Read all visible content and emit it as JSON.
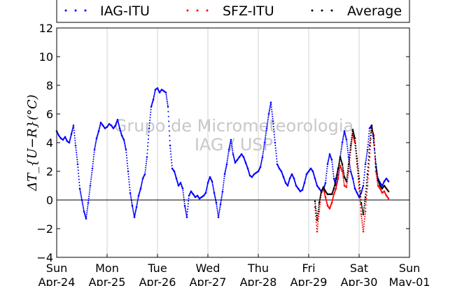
{
  "chart_data": {
    "type": "scatter",
    "title": "",
    "ylabel": "ΔT_{U−R}(°C)",
    "xlabel": "",
    "x_range": [
      "2016-04-24T00:00",
      "2016-05-01T00:00"
    ],
    "ylim": [
      -4,
      12
    ],
    "yticks": [
      -4,
      -2,
      0,
      2,
      4,
      6,
      8,
      10,
      12
    ],
    "xticks": [
      {
        "date": "2016-04-24",
        "day": "Sun",
        "label": "Apr-24"
      },
      {
        "date": "2016-04-25",
        "day": "Mon",
        "label": "Apr-25"
      },
      {
        "date": "2016-04-26",
        "day": "Tue",
        "label": "Apr-26"
      },
      {
        "date": "2016-04-27",
        "day": "Wed",
        "label": "Apr-27"
      },
      {
        "date": "2016-04-28",
        "day": "Thu",
        "label": "Apr-28"
      },
      {
        "date": "2016-04-29",
        "day": "Fri",
        "label": "Apr-29"
      },
      {
        "date": "2016-04-30",
        "day": "Sat",
        "label": "Apr-30"
      },
      {
        "date": "2016-05-01",
        "day": "Sun",
        "label": "May-01"
      }
    ],
    "grid": "vertical",
    "zero_line": true,
    "legend_position": "top",
    "watermark": [
      "Grupo de Micrometeorologia",
      "IAG / USP"
    ],
    "series": [
      {
        "name": "IAG-ITU",
        "color": "#0000ff",
        "points": [
          [
            "2016-04-24T00:00",
            4.8
          ],
          [
            "2016-04-24T01:00",
            4.5
          ],
          [
            "2016-04-24T02:00",
            4.3
          ],
          [
            "2016-04-24T03:00",
            4.2
          ],
          [
            "2016-04-24T04:00",
            4.4
          ],
          [
            "2016-04-24T05:00",
            4.1
          ],
          [
            "2016-04-24T06:00",
            4.0
          ],
          [
            "2016-04-24T07:00",
            4.6
          ],
          [
            "2016-04-24T08:00",
            5.2
          ],
          [
            "2016-04-24T09:00",
            3.8
          ],
          [
            "2016-04-24T10:00",
            2.5
          ],
          [
            "2016-04-24T11:00",
            0.8
          ],
          [
            "2016-04-24T12:00",
            0.0
          ],
          [
            "2016-04-24T13:00",
            -0.8
          ],
          [
            "2016-04-24T14:00",
            -1.3
          ],
          [
            "2016-04-24T15:00",
            -0.2
          ],
          [
            "2016-04-24T16:00",
            1.0
          ],
          [
            "2016-04-24T17:00",
            2.2
          ],
          [
            "2016-04-24T18:00",
            3.5
          ],
          [
            "2016-04-24T19:00",
            4.3
          ],
          [
            "2016-04-24T20:00",
            4.8
          ],
          [
            "2016-04-24T21:00",
            5.4
          ],
          [
            "2016-04-24T22:00",
            5.2
          ],
          [
            "2016-04-24T23:00",
            5.0
          ],
          [
            "2016-04-25T00:00",
            5.1
          ],
          [
            "2016-04-25T01:00",
            5.3
          ],
          [
            "2016-04-25T02:00",
            5.2
          ],
          [
            "2016-04-25T03:00",
            5.0
          ],
          [
            "2016-04-25T04:00",
            5.2
          ],
          [
            "2016-04-25T05:00",
            5.6
          ],
          [
            "2016-04-25T06:00",
            5.0
          ],
          [
            "2016-04-25T07:00",
            4.5
          ],
          [
            "2016-04-25T08:00",
            4.2
          ],
          [
            "2016-04-25T09:00",
            3.5
          ],
          [
            "2016-04-25T10:00",
            2.0
          ],
          [
            "2016-04-25T11:00",
            0.5
          ],
          [
            "2016-04-25T12:00",
            -0.4
          ],
          [
            "2016-04-25T13:00",
            -1.2
          ],
          [
            "2016-04-25T14:00",
            -0.5
          ],
          [
            "2016-04-25T15:00",
            0.3
          ],
          [
            "2016-04-25T16:00",
            0.8
          ],
          [
            "2016-04-25T17:00",
            1.5
          ],
          [
            "2016-04-25T18:00",
            1.8
          ],
          [
            "2016-04-25T19:00",
            3.0
          ],
          [
            "2016-04-25T20:00",
            5.0
          ],
          [
            "2016-04-25T21:00",
            6.5
          ],
          [
            "2016-04-25T22:00",
            7.0
          ],
          [
            "2016-04-25T23:00",
            7.7
          ],
          [
            "2016-04-26T00:00",
            7.8
          ],
          [
            "2016-04-26T01:00",
            7.5
          ],
          [
            "2016-04-26T02:00",
            7.7
          ],
          [
            "2016-04-26T03:00",
            7.6
          ],
          [
            "2016-04-26T04:00",
            7.5
          ],
          [
            "2016-04-26T05:00",
            6.5
          ],
          [
            "2016-04-26T06:00",
            3.8
          ],
          [
            "2016-04-26T07:00",
            2.2
          ],
          [
            "2016-04-26T08:00",
            2.0
          ],
          [
            "2016-04-26T09:00",
            1.5
          ],
          [
            "2016-04-26T10:00",
            1.0
          ],
          [
            "2016-04-26T11:00",
            1.2
          ],
          [
            "2016-04-26T12:00",
            0.8
          ],
          [
            "2016-04-26T13:00",
            -0.4
          ],
          [
            "2016-04-26T14:00",
            -1.2
          ],
          [
            "2016-04-26T15:00",
            0.3
          ],
          [
            "2016-04-26T16:00",
            0.6
          ],
          [
            "2016-04-26T17:00",
            0.4
          ],
          [
            "2016-04-26T18:00",
            0.2
          ],
          [
            "2016-04-26T19:00",
            0.3
          ],
          [
            "2016-04-26T20:00",
            0.1
          ],
          [
            "2016-04-26T21:00",
            0.2
          ],
          [
            "2016-04-26T22:00",
            0.3
          ],
          [
            "2016-04-26T23:00",
            0.5
          ],
          [
            "2016-04-27T00:00",
            1.2
          ],
          [
            "2016-04-27T01:00",
            1.6
          ],
          [
            "2016-04-27T02:00",
            1.3
          ],
          [
            "2016-04-27T03:00",
            0.5
          ],
          [
            "2016-04-27T04:00",
            -0.2
          ],
          [
            "2016-04-27T05:00",
            -1.2
          ],
          [
            "2016-04-27T06:00",
            -0.3
          ],
          [
            "2016-04-27T07:00",
            0.6
          ],
          [
            "2016-04-27T08:00",
            1.8
          ],
          [
            "2016-04-27T09:00",
            2.5
          ],
          [
            "2016-04-27T10:00",
            3.5
          ],
          [
            "2016-04-27T11:00",
            4.2
          ],
          [
            "2016-04-27T12:00",
            3.2
          ],
          [
            "2016-04-27T13:00",
            2.6
          ],
          [
            "2016-04-27T14:00",
            2.8
          ],
          [
            "2016-04-27T15:00",
            3.0
          ],
          [
            "2016-04-27T16:00",
            3.2
          ],
          [
            "2016-04-27T17:00",
            3.0
          ],
          [
            "2016-04-27T18:00",
            2.6
          ],
          [
            "2016-04-27T19:00",
            2.2
          ],
          [
            "2016-04-27T20:00",
            1.7
          ],
          [
            "2016-04-27T21:00",
            1.6
          ],
          [
            "2016-04-27T22:00",
            1.8
          ],
          [
            "2016-04-27T23:00",
            1.9
          ],
          [
            "2016-04-28T00:00",
            2.0
          ],
          [
            "2016-04-28T01:00",
            2.3
          ],
          [
            "2016-04-28T02:00",
            3.0
          ],
          [
            "2016-04-28T03:00",
            4.0
          ],
          [
            "2016-04-28T04:00",
            5.0
          ],
          [
            "2016-04-28T05:00",
            6.0
          ],
          [
            "2016-04-28T06:00",
            6.8
          ],
          [
            "2016-04-28T07:00",
            5.5
          ],
          [
            "2016-04-28T08:00",
            4.0
          ],
          [
            "2016-04-28T09:00",
            2.5
          ],
          [
            "2016-04-28T10:00",
            2.2
          ],
          [
            "2016-04-28T11:00",
            2.0
          ],
          [
            "2016-04-28T12:00",
            1.6
          ],
          [
            "2016-04-28T13:00",
            1.2
          ],
          [
            "2016-04-28T14:00",
            1.0
          ],
          [
            "2016-04-28T15:00",
            1.5
          ],
          [
            "2016-04-28T16:00",
            1.8
          ],
          [
            "2016-04-28T17:00",
            1.5
          ],
          [
            "2016-04-28T18:00",
            1.0
          ],
          [
            "2016-04-28T19:00",
            0.8
          ],
          [
            "2016-04-28T20:00",
            0.6
          ],
          [
            "2016-04-28T21:00",
            0.7
          ],
          [
            "2016-04-28T22:00",
            1.2
          ],
          [
            "2016-04-28T23:00",
            1.8
          ],
          [
            "2016-04-29T00:00",
            2.0
          ],
          [
            "2016-04-29T01:00",
            2.2
          ],
          [
            "2016-04-29T02:00",
            2.0
          ],
          [
            "2016-04-29T03:00",
            1.5
          ],
          [
            "2016-04-29T04:00",
            1.0
          ],
          [
            "2016-04-29T05:00",
            0.8
          ],
          [
            "2016-04-29T06:00",
            0.6
          ],
          [
            "2016-04-29T07:00",
            0.7
          ],
          [
            "2016-04-29T08:00",
            1.2
          ],
          [
            "2016-04-29T09:00",
            2.5
          ],
          [
            "2016-04-29T10:00",
            3.2
          ],
          [
            "2016-04-29T11:00",
            2.8
          ],
          [
            "2016-04-29T12:00",
            1.5
          ],
          [
            "2016-04-29T13:00",
            1.0
          ],
          [
            "2016-04-29T14:00",
            1.8
          ],
          [
            "2016-04-29T15:00",
            3.0
          ],
          [
            "2016-04-29T16:00",
            4.0
          ],
          [
            "2016-04-29T17:00",
            4.8
          ],
          [
            "2016-04-29T18:00",
            4.2
          ],
          [
            "2016-04-29T19:00",
            3.0
          ],
          [
            "2016-04-29T20:00",
            2.0
          ],
          [
            "2016-04-29T21:00",
            1.5
          ],
          [
            "2016-04-29T22:00",
            0.8
          ],
          [
            "2016-04-29T23:00",
            0.5
          ],
          [
            "2016-04-30T00:00",
            0.2
          ],
          [
            "2016-04-30T01:00",
            0.5
          ],
          [
            "2016-04-30T02:00",
            1.0
          ],
          [
            "2016-04-30T03:00",
            2.5
          ],
          [
            "2016-04-30T04:00",
            3.5
          ],
          [
            "2016-04-30T05:00",
            5.0
          ],
          [
            "2016-04-30T06:00",
            5.2
          ],
          [
            "2016-04-30T07:00",
            4.0
          ],
          [
            "2016-04-30T08:00",
            2.5
          ],
          [
            "2016-04-30T09:00",
            1.5
          ],
          [
            "2016-04-30T10:00",
            1.2
          ],
          [
            "2016-04-30T11:00",
            1.0
          ],
          [
            "2016-04-30T12:00",
            1.3
          ],
          [
            "2016-04-30T13:00",
            1.5
          ],
          [
            "2016-04-30T14:00",
            1.3
          ]
        ]
      },
      {
        "name": "SFZ-ITU",
        "color": "#ff0000",
        "points": [
          [
            "2016-04-29T03:00",
            -0.5
          ],
          [
            "2016-04-29T04:00",
            -2.2
          ],
          [
            "2016-04-29T05:00",
            -0.8
          ],
          [
            "2016-04-29T06:00",
            0.5
          ],
          [
            "2016-04-29T07:00",
            0.8
          ],
          [
            "2016-04-29T08:00",
            0.2
          ],
          [
            "2016-04-29T09:00",
            -0.4
          ],
          [
            "2016-04-29T10:00",
            -0.6
          ],
          [
            "2016-04-29T11:00",
            -0.2
          ],
          [
            "2016-04-29T12:00",
            0.4
          ],
          [
            "2016-04-29T13:00",
            0.8
          ],
          [
            "2016-04-29T14:00",
            1.5
          ],
          [
            "2016-04-29T15:00",
            2.4
          ],
          [
            "2016-04-29T16:00",
            2.0
          ],
          [
            "2016-04-29T17:00",
            1.0
          ],
          [
            "2016-04-29T18:00",
            0.9
          ],
          [
            "2016-04-29T19:00",
            2.0
          ],
          [
            "2016-04-29T20:00",
            3.5
          ],
          [
            "2016-04-29T21:00",
            4.6
          ],
          [
            "2016-04-29T22:00",
            4.0
          ],
          [
            "2016-04-29T23:00",
            2.5
          ],
          [
            "2016-04-30T00:00",
            0.8
          ],
          [
            "2016-04-30T01:00",
            -1.0
          ],
          [
            "2016-04-30T02:00",
            -2.2
          ],
          [
            "2016-04-30T03:00",
            -0.8
          ],
          [
            "2016-04-30T04:00",
            1.0
          ],
          [
            "2016-04-30T05:00",
            3.0
          ],
          [
            "2016-04-30T06:00",
            5.0
          ],
          [
            "2016-04-30T07:00",
            4.5
          ],
          [
            "2016-04-30T08:00",
            2.0
          ],
          [
            "2016-04-30T09:00",
            1.0
          ],
          [
            "2016-04-30T10:00",
            0.8
          ],
          [
            "2016-04-30T11:00",
            0.5
          ],
          [
            "2016-04-30T12:00",
            0.6
          ],
          [
            "2016-04-30T13:00",
            0.3
          ],
          [
            "2016-04-30T14:00",
            0.1
          ]
        ]
      },
      {
        "name": "Average",
        "color": "#000000",
        "points": [
          [
            "2016-04-29T03:00",
            -0.1
          ],
          [
            "2016-04-29T04:00",
            -1.4
          ],
          [
            "2016-04-29T05:00",
            -0.2
          ],
          [
            "2016-04-29T06:00",
            0.6
          ],
          [
            "2016-04-29T07:00",
            0.9
          ],
          [
            "2016-04-29T08:00",
            0.6
          ],
          [
            "2016-04-29T09:00",
            0.4
          ],
          [
            "2016-04-29T10:00",
            0.4
          ],
          [
            "2016-04-29T11:00",
            0.4
          ],
          [
            "2016-04-29T12:00",
            0.8
          ],
          [
            "2016-04-29T13:00",
            1.5
          ],
          [
            "2016-04-29T14:00",
            2.2
          ],
          [
            "2016-04-29T15:00",
            3.0
          ],
          [
            "2016-04-29T16:00",
            2.5
          ],
          [
            "2016-04-29T17:00",
            1.6
          ],
          [
            "2016-04-29T18:00",
            1.3
          ],
          [
            "2016-04-29T19:00",
            2.5
          ],
          [
            "2016-04-29T20:00",
            3.8
          ],
          [
            "2016-04-29T21:00",
            4.9
          ],
          [
            "2016-04-29T22:00",
            4.3
          ],
          [
            "2016-04-29T23:00",
            2.9
          ],
          [
            "2016-04-30T00:00",
            1.5
          ],
          [
            "2016-04-30T01:00",
            -0.2
          ],
          [
            "2016-04-30T02:00",
            -1.0
          ],
          [
            "2016-04-30T03:00",
            0.2
          ],
          [
            "2016-04-30T04:00",
            1.8
          ],
          [
            "2016-04-30T05:00",
            3.8
          ],
          [
            "2016-04-30T06:00",
            5.2
          ],
          [
            "2016-04-30T07:00",
            4.3
          ],
          [
            "2016-04-30T08:00",
            2.3
          ],
          [
            "2016-04-30T09:00",
            1.4
          ],
          [
            "2016-04-30T10:00",
            1.0
          ],
          [
            "2016-04-30T11:00",
            0.8
          ],
          [
            "2016-04-30T12:00",
            1.0
          ],
          [
            "2016-04-30T13:00",
            0.8
          ],
          [
            "2016-04-30T14:00",
            0.6
          ]
        ]
      }
    ]
  }
}
